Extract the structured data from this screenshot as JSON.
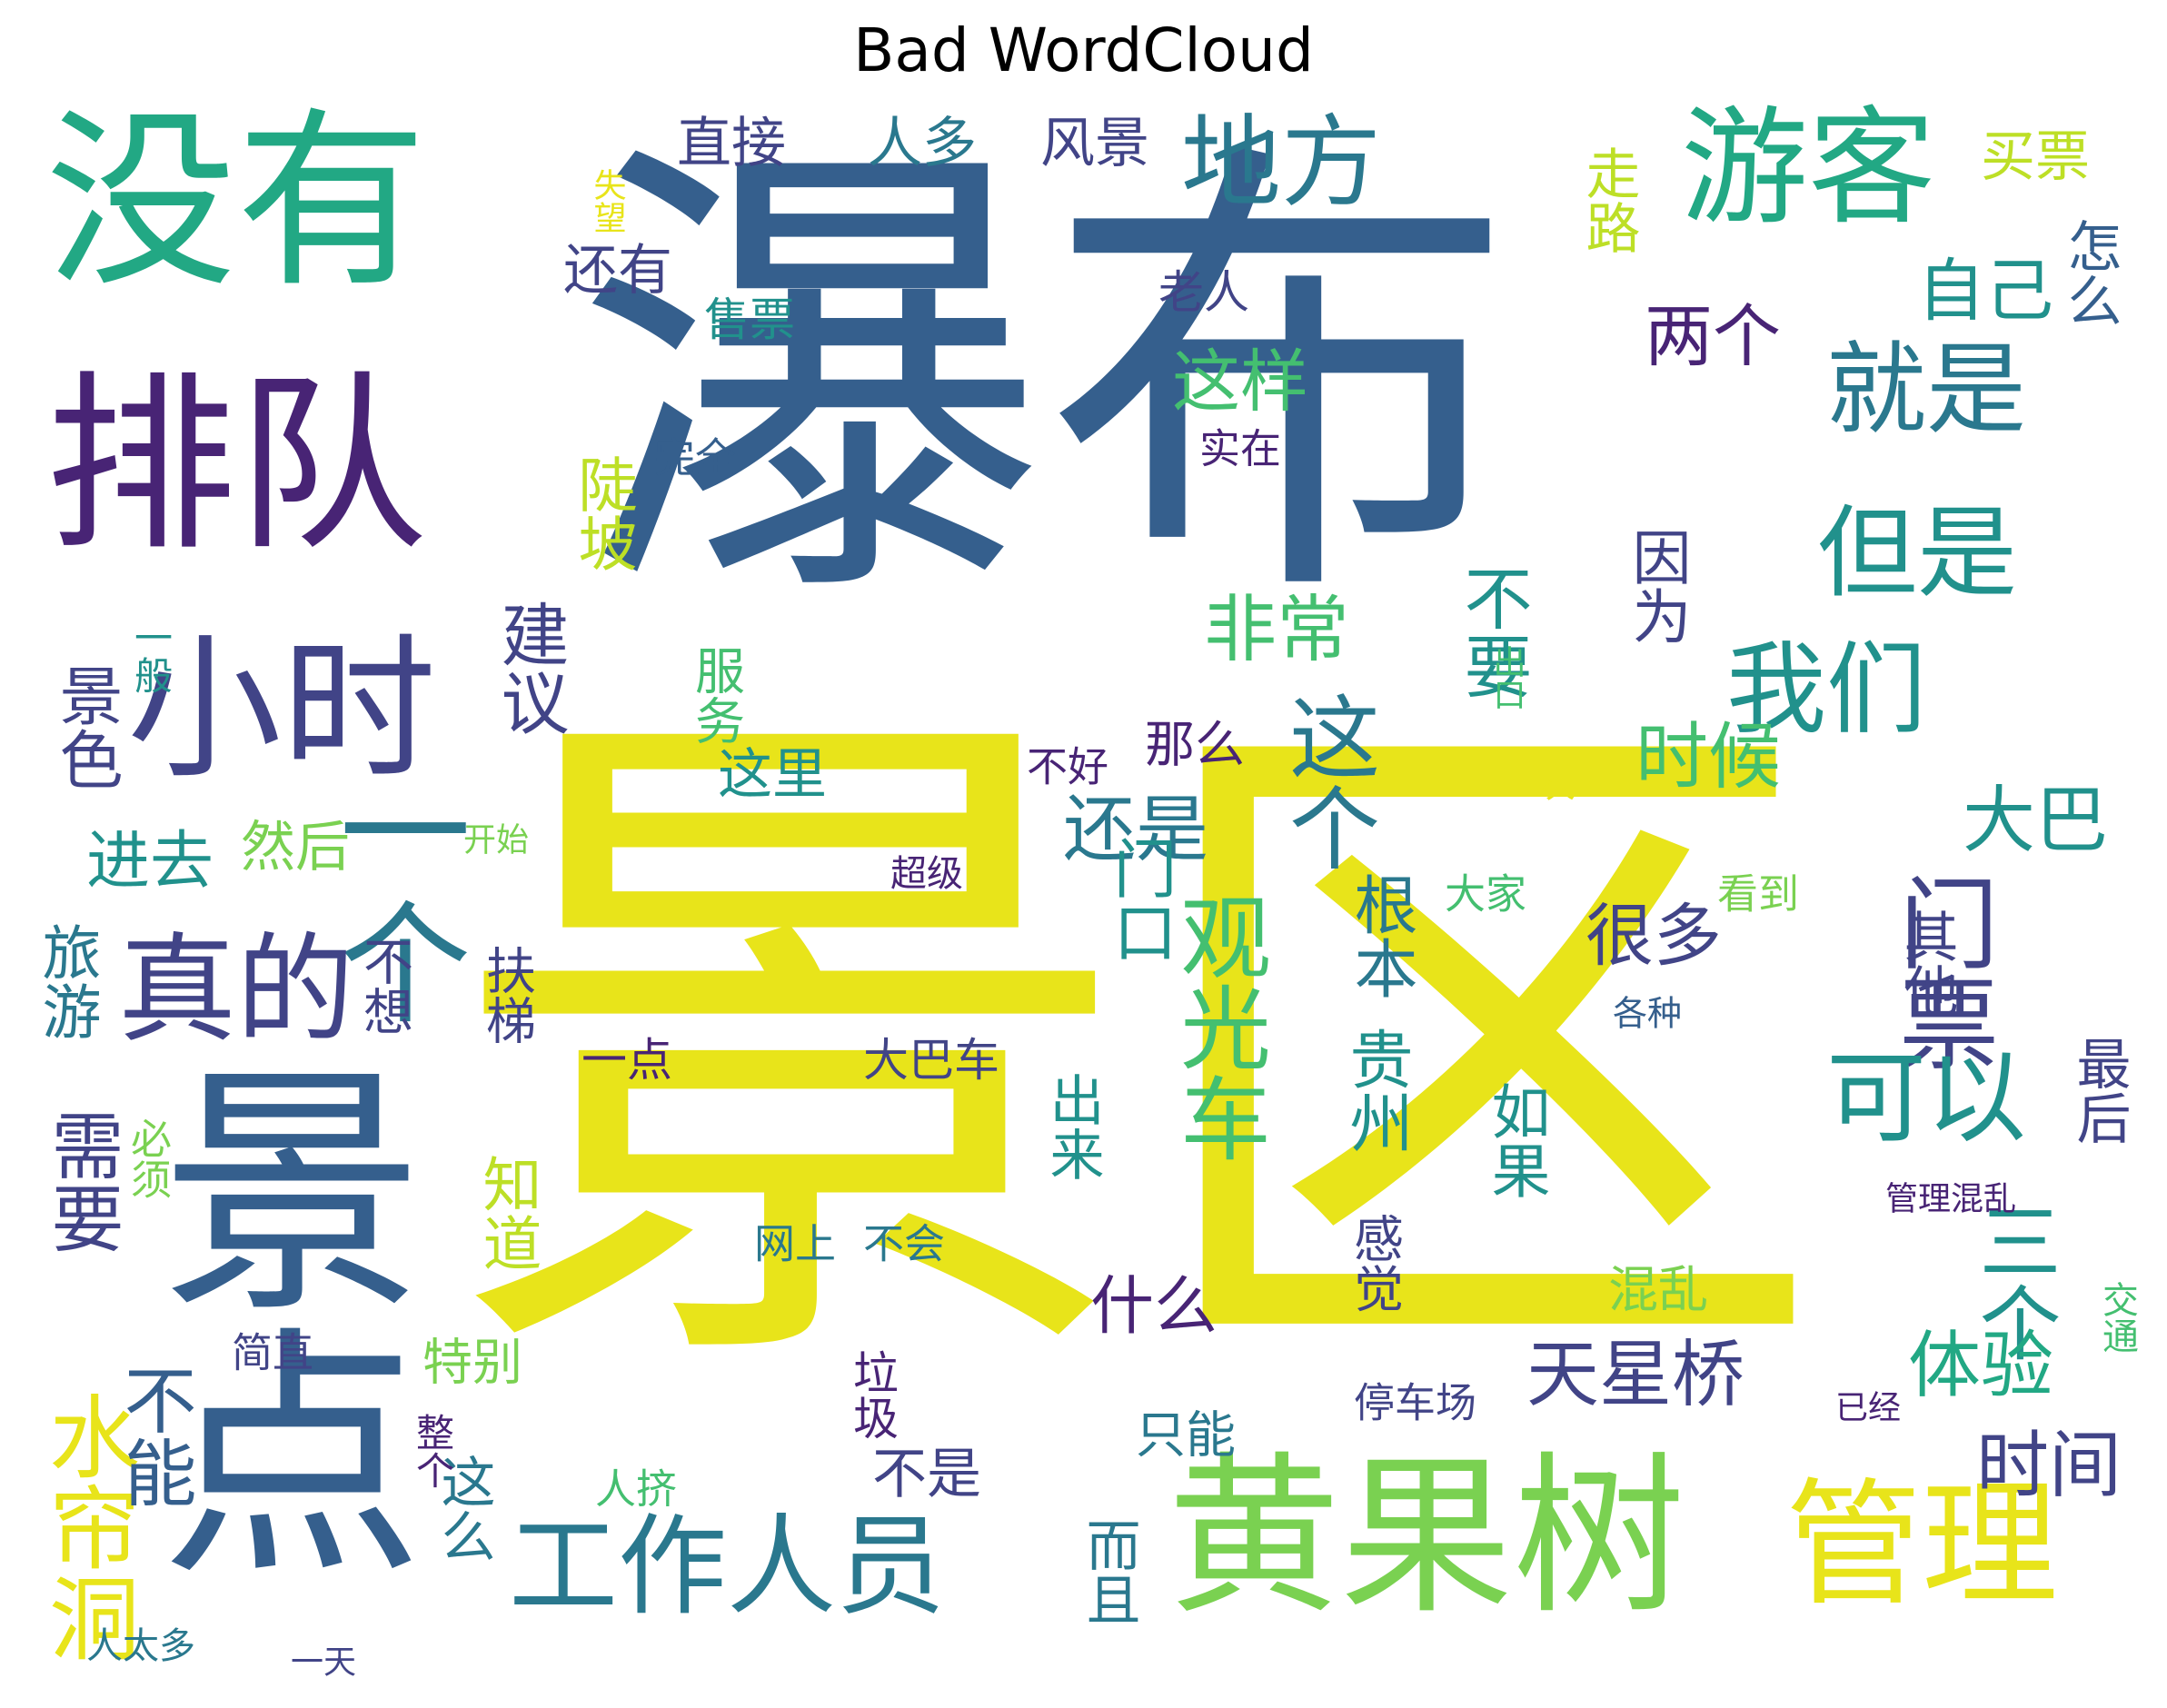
{
  "title": "Bad WordCloud",
  "palette": {
    "dark_purple": "#482475",
    "indigo": "#414487",
    "blue": "#355f8d",
    "teal_blue": "#2a788e",
    "teal": "#21918c",
    "green_teal": "#22a884",
    "green": "#44bf70",
    "lime": "#7ad151",
    "yellow_green": "#bddf26",
    "yellow": "#e8e41a"
  },
  "words": [
    {
      "text": "瀑布",
      "color": "#355f8d"
    },
    {
      "text": "景区",
      "color": "#e8e41a"
    },
    {
      "text": "没有",
      "color": "#22a884"
    },
    {
      "text": "排队",
      "color": "#482475"
    },
    {
      "text": "景点",
      "color": "#355f8d"
    },
    {
      "text": "游客",
      "color": "#22a884"
    },
    {
      "text": "黄果树",
      "color": "#7ad151"
    },
    {
      "text": "小时",
      "color": "#414487"
    },
    {
      "text": "一个",
      "color": "#2a788e"
    },
    {
      "text": "地方",
      "color": "#2a788e"
    },
    {
      "text": "就是",
      "color": "#2a788e"
    },
    {
      "text": "但是",
      "color": "#21918c"
    },
    {
      "text": "我们",
      "color": "#21918c"
    },
    {
      "text": "门票",
      "color": "#414487"
    },
    {
      "text": "可以",
      "color": "#21918c"
    },
    {
      "text": "真的",
      "color": "#414487"
    },
    {
      "text": "工作人员",
      "color": "#2a788e"
    },
    {
      "text": "管理",
      "color": "#e8e41a"
    },
    {
      "text": "观光车",
      "color": "#44bf70"
    },
    {
      "text": "这个",
      "color": "#2a788e"
    },
    {
      "text": "三个",
      "color": "#21918c"
    },
    {
      "text": "水帘洞",
      "color": "#e8e41a"
    },
    {
      "text": "天星桥",
      "color": "#414487"
    },
    {
      "text": "大巴",
      "color": "#21918c"
    },
    {
      "text": "需要",
      "color": "#414487"
    },
    {
      "text": "不能",
      "color": "#355f8d"
    },
    {
      "text": "非常",
      "color": "#44bf70"
    },
    {
      "text": "还是",
      "color": "#2a788e"
    },
    {
      "text": "时候",
      "color": "#44bf70"
    },
    {
      "text": "体验",
      "color": "#22a884"
    },
    {
      "text": "时间",
      "color": "#414487"
    },
    {
      "text": "很多",
      "color": "#414487"
    },
    {
      "text": "建议",
      "color": "#414487"
    },
    {
      "text": "这样",
      "color": "#44bf70"
    },
    {
      "text": "两个",
      "color": "#482475"
    },
    {
      "text": "自己",
      "color": "#21918c"
    },
    {
      "text": "不要",
      "color": "#21918c"
    },
    {
      "text": "因为",
      "color": "#414487"
    },
    {
      "text": "陡坡",
      "color": "#bddf26"
    },
    {
      "text": "还有",
      "color": "#414487"
    },
    {
      "text": "直接",
      "color": "#414487"
    },
    {
      "text": "人多",
      "color": "#2a788e"
    },
    {
      "text": "风景",
      "color": "#414487"
    },
    {
      "text": "走路",
      "color": "#bddf26"
    },
    {
      "text": "买票",
      "color": "#bddf26"
    },
    {
      "text": "怎么",
      "color": "#355f8d"
    },
    {
      "text": "老人",
      "color": "#414487"
    },
    {
      "text": "售票",
      "color": "#21918c"
    },
    {
      "text": "失望",
      "color": "#e8e41a"
    },
    {
      "text": "完全",
      "color": "#355f8d"
    },
    {
      "text": "实在",
      "color": "#482475"
    },
    {
      "text": "服务",
      "color": "#44bf70"
    },
    {
      "text": "这里",
      "color": "#21918c"
    },
    {
      "text": "那么",
      "color": "#482475"
    },
    {
      "text": "不好",
      "color": "#482475"
    },
    {
      "text": "出口",
      "color": "#44bf70"
    },
    {
      "text": "一次",
      "color": "#e8e41a"
    },
    {
      "text": "景色",
      "color": "#414487"
    },
    {
      "text": "一般",
      "color": "#21918c"
    },
    {
      "text": "进去",
      "color": "#21918c"
    },
    {
      "text": "然后",
      "color": "#7ad151"
    },
    {
      "text": "开始",
      "color": "#7ad151"
    },
    {
      "text": "超级",
      "color": "#482475"
    },
    {
      "text": "旅游",
      "color": "#2a788e"
    },
    {
      "text": "不想",
      "color": "#414487"
    },
    {
      "text": "扶梯",
      "color": "#414487"
    },
    {
      "text": "门口",
      "color": "#21918c"
    },
    {
      "text": "根本",
      "color": "#2a788e"
    },
    {
      "text": "大家",
      "color": "#44bf70"
    },
    {
      "text": "看到",
      "color": "#7ad151"
    },
    {
      "text": "其他",
      "color": "#414487"
    },
    {
      "text": "最后",
      "color": "#414487"
    },
    {
      "text": "各种",
      "color": "#355f8d"
    },
    {
      "text": "一点",
      "color": "#482475"
    },
    {
      "text": "大巴车",
      "color": "#414487"
    },
    {
      "text": "贵州",
      "color": "#21918c"
    },
    {
      "text": "如果",
      "color": "#21918c"
    },
    {
      "text": "出来",
      "color": "#21918c"
    },
    {
      "text": "必须",
      "color": "#7ad151"
    },
    {
      "text": "知道",
      "color": "#bddf26"
    },
    {
      "text": "感觉",
      "color": "#414487"
    },
    {
      "text": "管理混乱",
      "color": "#482475"
    },
    {
      "text": "网上",
      "color": "#2a788e"
    },
    {
      "text": "不会",
      "color": "#2a788e"
    },
    {
      "text": "混乱",
      "color": "#7ad151"
    },
    {
      "text": "什么",
      "color": "#482475"
    },
    {
      "text": "特别",
      "color": "#7ad151"
    },
    {
      "text": "简直",
      "color": "#414487"
    },
    {
      "text": "垃圾",
      "color": "#482475"
    },
    {
      "text": "停车场",
      "color": "#414487"
    },
    {
      "text": "已经",
      "color": "#482475"
    },
    {
      "text": "交通",
      "color": "#44bf70"
    },
    {
      "text": "只能",
      "color": "#2a788e"
    },
    {
      "text": "不是",
      "color": "#414487"
    },
    {
      "text": "这么",
      "color": "#2a788e"
    },
    {
      "text": "而且",
      "color": "#2a788e"
    },
    {
      "text": "整个",
      "color": "#482475"
    },
    {
      "text": "人挤",
      "color": "#44bf70"
    },
    {
      "text": "人太多",
      "color": "#2a788e"
    },
    {
      "text": "一天",
      "color": "#414487"
    }
  ]
}
